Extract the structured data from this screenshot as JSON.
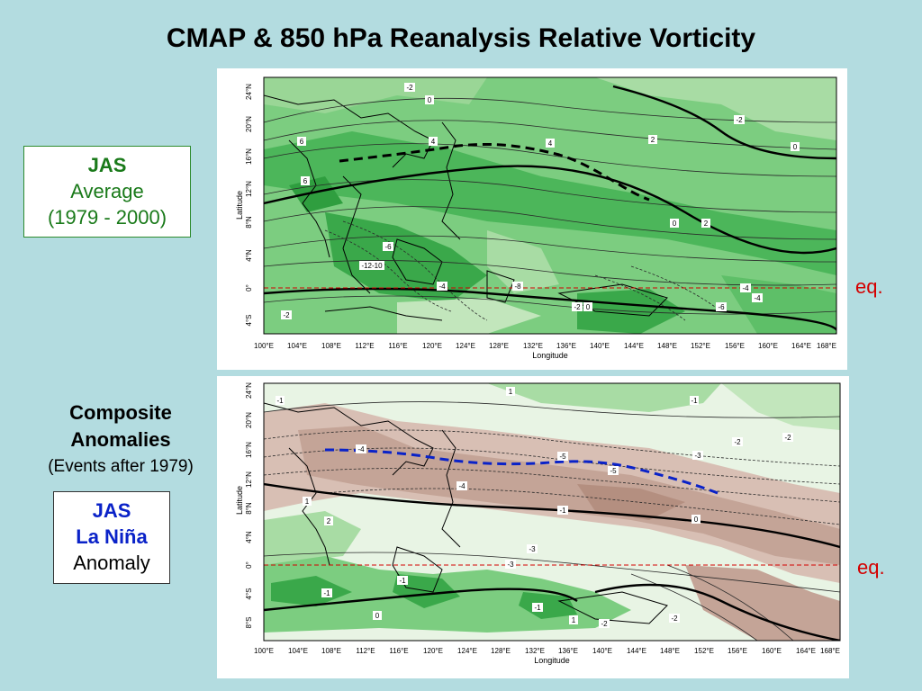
{
  "title": "CMAP & 850 hPa Reanalysis Relative Vorticity",
  "left_labels": {
    "average_box": {
      "line1": "JAS",
      "line2": "Average",
      "line3": "(1979 - 2000)"
    },
    "composite": {
      "line1": "Composite",
      "line2": "Anomalies",
      "line3": "(Events after 1979)"
    },
    "lanina_box": {
      "line1": "JAS",
      "line2": "La Niña",
      "line3": "Anomaly"
    }
  },
  "eq_label": "eq.",
  "colors": {
    "background": "#b3dce0",
    "green_dark": "#3cae4c",
    "green_mid": "#74c97a",
    "green_light": "#b6e2b0",
    "brown": "#c4a497",
    "brown_light": "#e3cfc6",
    "equator_line": "#d40000",
    "trough_black": "#000000",
    "trough_blue": "#0a22c8",
    "avg_label": "#1a7a1a",
    "lanina_label": "#0a22c8"
  },
  "maps": {
    "axis_title_x": "Longitude",
    "axis_title_y": "Latitude",
    "lon_ticks": [
      "100°E",
      "104°E",
      "108°E",
      "112°E",
      "116°E",
      "120°E",
      "124°E",
      "128°E",
      "132°E",
      "136°E",
      "140°E",
      "144°E",
      "148°E",
      "152°E",
      "156°E",
      "160°E",
      "164°E",
      "168°E"
    ],
    "top": {
      "lat_ticks": [
        "24°N",
        "20°N",
        "16°N",
        "12°N",
        "8°N",
        "4°N",
        "0°",
        "4°S"
      ],
      "contour_labels": [
        "-2",
        "0",
        "6",
        "4",
        "4",
        "2",
        "-2",
        "0",
        "6",
        "0",
        "2",
        "-6",
        "-12-10",
        "-4",
        "-8",
        "-2",
        "-4",
        "-2",
        "0",
        "-6",
        "-4"
      ]
    },
    "bottom": {
      "lat_ticks": [
        "24°N",
        "20°N",
        "16°N",
        "12°N",
        "8°N",
        "4°N",
        "0°",
        "4°S",
        "8°S"
      ],
      "contour_labels": [
        "-1",
        "1",
        "-1",
        "-2",
        "-2",
        "-4",
        "-5",
        "-3",
        "-5",
        "-4",
        "-1",
        "1",
        "2",
        "0",
        "-3",
        "-3",
        "-1",
        "-1",
        "-1",
        "0",
        "1",
        "-2",
        "-2"
      ]
    }
  }
}
